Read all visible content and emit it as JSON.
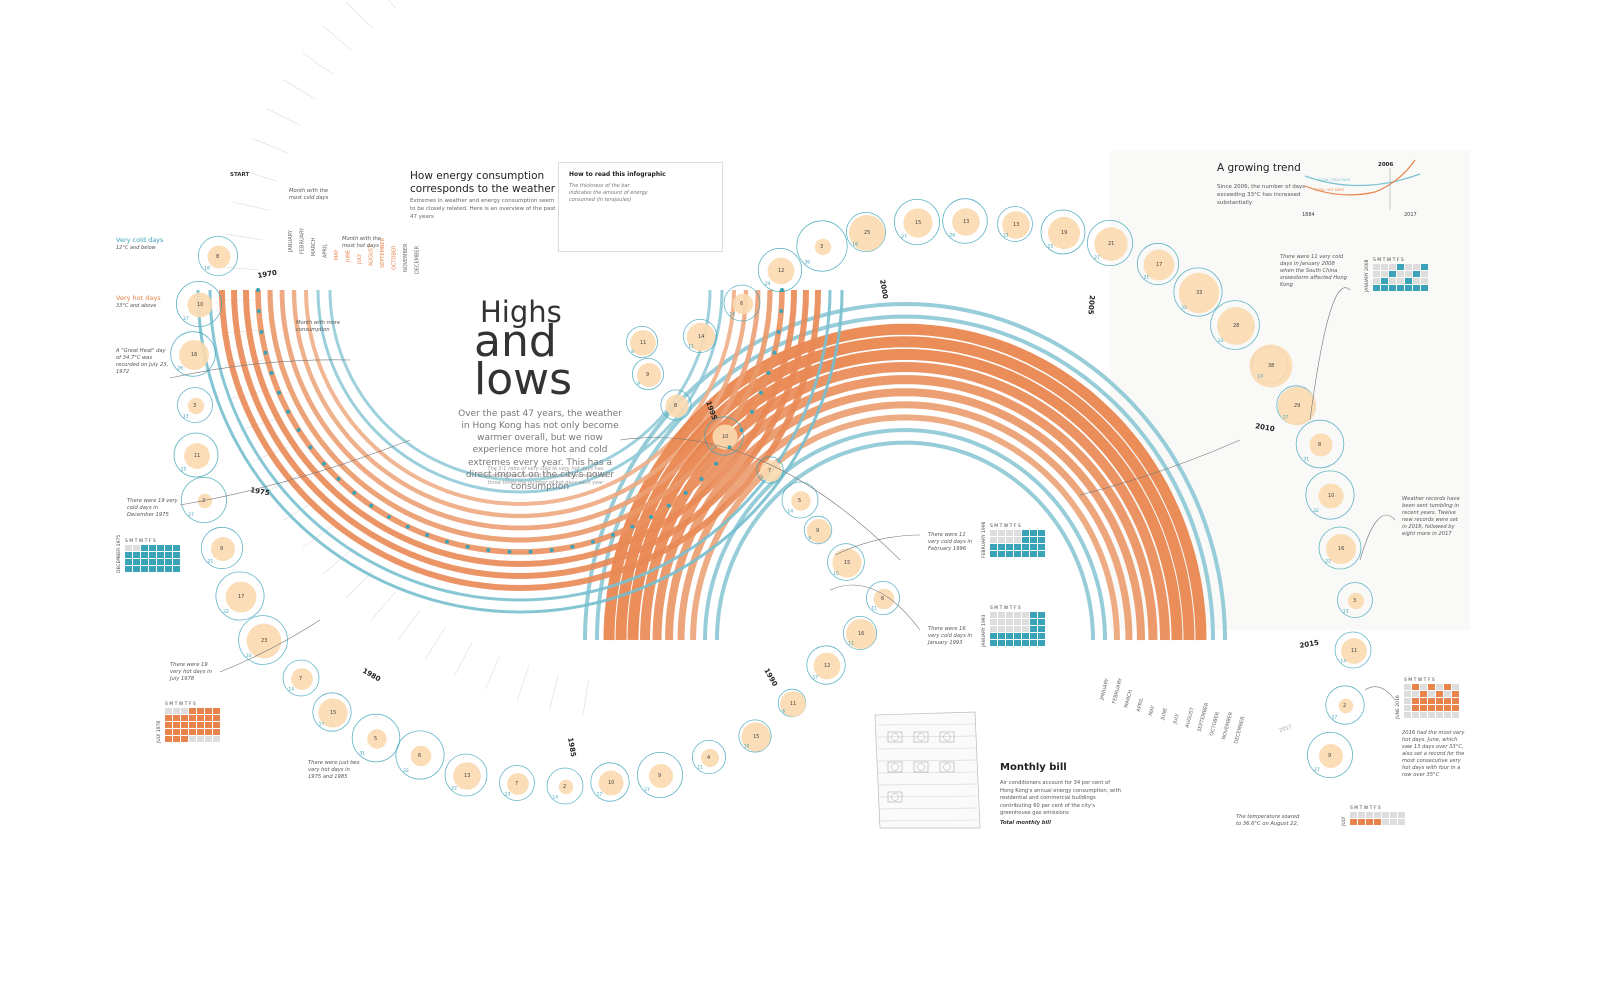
{
  "header": {
    "title_line1": "Highs",
    "title_line2": "and",
    "title_line3": "lows",
    "intro": "Over the past 47 years, the weather in Hong Kong has not only become warmer overall, but we now experience more hot and cold extremes every year. This has a direct impact on the city's power consumption",
    "intro_note": "The 3:1 ratio of very cold to very hot days has reversed over the past 10 years so we now have three times the number of hot days each year",
    "start_label": "START"
  },
  "energy_panel": {
    "heading": "How energy consumption corresponds to the weather",
    "text": "Extremes in weather and energy consumption seem to be closely related. Here is an overview of the past 47 years"
  },
  "how_to_read": {
    "heading": "How to read this infographic",
    "text": "The thickness of the bar indicates the amount of energy consumed (in terajoules)",
    "legend_title": "Mean (degrees Celsius)",
    "legend_low": "12°C (53.6°F)",
    "legend_high": "29°C (84.2°F)",
    "tick_20000": "20,000 TJ",
    "tick_15000": "15,000 TJ",
    "tick_10000": "10,000 TJ",
    "tick_5000": "5,000 TJ"
  },
  "legend": {
    "very_cold_label": "Very cold days",
    "very_cold_def": "12°C and below",
    "very_hot_label": "Very hot days",
    "very_hot_def": "33°C and above",
    "most_cold_month": "Month with the most cold days",
    "most_hot_month": "Month with the most hot days",
    "more_consumption": "Month with more consumption",
    "great_heat": "A \"Great Heat\" day of 34.7°C was recorded on July 23, 1972"
  },
  "growing_trend": {
    "heading": "A growing trend",
    "text": "Since 2006, the number of days exceeding 33°C has increased substantially",
    "year_start": "1884",
    "year_cross": "2006",
    "year_end": "2017",
    "series_cold": "TOTAL COLD DAYS",
    "series_hot": "TOTAL HOT DAYS",
    "colors": {
      "cold": "#7cc3d2",
      "hot": "#e8834b"
    }
  },
  "monthly_bill": {
    "heading": "Monthly bill",
    "text": "Air conditioners account for 34 per cent of Hong Kong's annual energy consumption, with residential and commercial buildings contributing 60 per cent of the city's greenhouse gas emissions",
    "total": "Total monthly bill"
  },
  "annotations": {
    "dec1975": "There were 19 very cold days in December 1975",
    "jul1978": "There were 19 very hot days in July 1978",
    "hot1975_1985": "There were just two very hot days in 1975 and 1985",
    "feb1996": "There were 11 very cold days in February 1996",
    "jan1993": "There were 16 very cold days in January 1993",
    "jan2008": "There were 11 very cold days in January 2008 when the South China snowstorm affected Hong Kong",
    "records": "Weather records have been sent tumbling in recent years. Twelve new records were set in 2016, followed by eight more in 2017",
    "jun2016": "2016 had the most very hot days. June, which saw 13 days over 33°C, also set a record for the most consecutive very hot days with four in a row over 35°C",
    "aug2017": "The temperature soared to 36.6°C on August 22, 2017 - Hong Kong's"
  },
  "calendars": {
    "weekday_header": "S M T W T F S",
    "dec1975": "DECEMBER 1975",
    "jul1978": "JULY 1978",
    "feb1996": "FEBRUARY 1996",
    "jan1993": "JANUARY 1993",
    "jan2008": "JANUARY 2008",
    "jun2016": "JUNE 2016",
    "jul2017": "JULY"
  },
  "colors": {
    "cold": "#3aa3b8",
    "cold_light": "#b9dde6",
    "hot": "#e8834b",
    "hot_light": "#fbd9b0",
    "grid": "#dddddd"
  },
  "chart_data": {
    "type": "radial-spiral",
    "title": "Highs and lows",
    "months": [
      "JANUARY",
      "FEBRUARY",
      "MARCH",
      "APRIL",
      "MAY",
      "JUNE",
      "JULY",
      "AUGUST",
      "SEPTEMBER",
      "OCTOBER",
      "NOVEMBER",
      "DECEMBER"
    ],
    "decade_labels": [
      "1970",
      "1975",
      "1980",
      "1985",
      "1990",
      "1995",
      "2000",
      "2005",
      "2010",
      "2015",
      "2017"
    ],
    "very_cold_days_shown": [
      18,
      27,
      26,
      13,
      25,
      27,
      21,
      32,
      33,
      14,
      17,
      31,
      32,
      22,
      13,
      14,
      17,
      27,
      11,
      10,
      6,
      17,
      11,
      11,
      15,
      6,
      14,
      5,
      17,
      8,
      9,
      9,
      11,
      14,
      24,
      36
    ],
    "very_hot_days_shown": [
      8,
      10,
      16,
      3,
      11,
      2,
      9,
      17,
      23,
      7,
      15,
      5,
      6,
      13,
      7,
      2,
      10,
      9,
      4,
      15,
      11,
      12,
      16,
      6,
      15,
      9,
      5,
      7,
      10,
      8,
      9,
      11,
      14,
      6,
      12,
      3,
      25,
      15,
      13,
      13,
      19,
      21,
      17,
      33,
      28,
      38,
      29
    ],
    "series": [
      {
        "name": "Very cold days",
        "color": "#3aa3b8"
      },
      {
        "name": "Very hot days",
        "color": "#e8834b"
      }
    ]
  }
}
